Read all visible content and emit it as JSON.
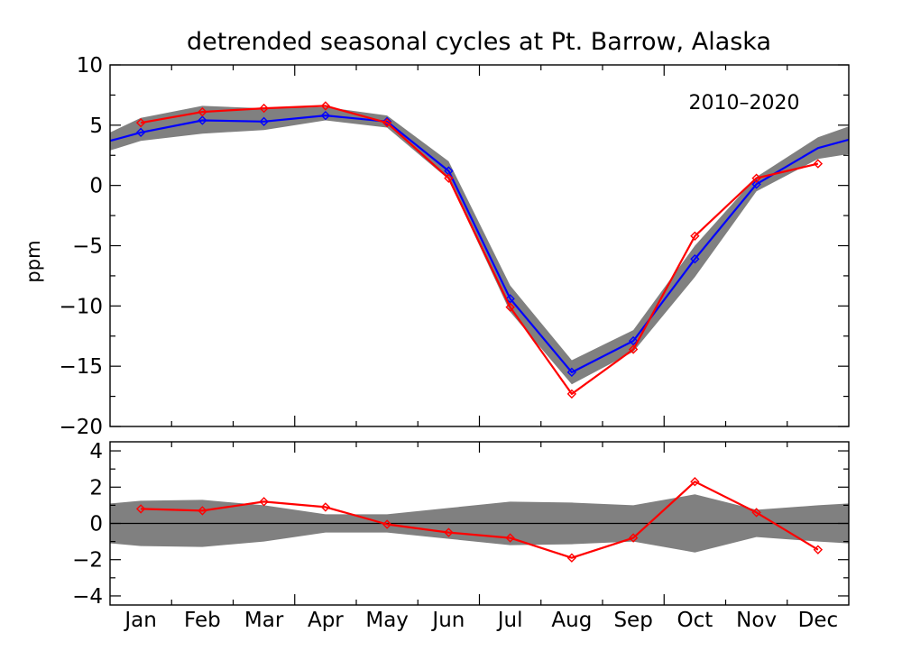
{
  "chart_data": [
    {
      "type": "line",
      "title": "detrended seasonal cycles at Pt. Barrow, Alaska",
      "ylabel": "ppm",
      "xlabel": "",
      "annotation": "2010–2020",
      "categories": [
        "Jan",
        "Feb",
        "Mar",
        "Apr",
        "May",
        "Jun",
        "Jul",
        "Aug",
        "Sep",
        "Oct",
        "Nov",
        "Dec"
      ],
      "ylim": [
        -20,
        10
      ],
      "yticks": [
        10,
        5,
        0,
        -5,
        -10,
        -15,
        -20
      ],
      "ytick_labels": [
        "10",
        "5",
        "0",
        "−5",
        "−10",
        "−15",
        "−20"
      ],
      "grid": false,
      "band": {
        "color": "#808080",
        "x": [
          -0.5,
          0,
          1,
          2,
          3,
          4,
          5,
          6,
          7,
          8,
          9,
          10,
          11,
          11.5
        ],
        "upper": [
          4.4,
          5.6,
          6.6,
          6.4,
          6.5,
          5.8,
          2.0,
          -8.3,
          -14.5,
          -12.0,
          -5.0,
          0.7,
          4.0,
          4.9
        ],
        "lower": [
          2.9,
          3.7,
          4.3,
          4.6,
          5.4,
          4.8,
          0.5,
          -10.5,
          -16.5,
          -13.8,
          -7.6,
          -0.5,
          2.2,
          2.6
        ]
      },
      "series": [
        {
          "color": "#0000ff",
          "marker": "diamond",
          "x": [
            -0.5,
            0,
            1,
            2,
            3,
            4,
            5,
            6,
            7,
            8,
            9,
            10,
            11,
            11.5
          ],
          "values": [
            3.7,
            4.4,
            5.4,
            5.3,
            5.8,
            5.3,
            1.2,
            -9.4,
            -15.5,
            -12.9,
            -6.1,
            0.1,
            3.1,
            3.8
          ],
          "marker_from": 1,
          "marker_to": 12
        },
        {
          "color": "#ff0000",
          "marker": "diamond",
          "x": [
            0,
            1,
            2,
            3,
            4,
            5,
            6,
            7,
            8,
            9,
            10,
            11
          ],
          "values": [
            5.2,
            6.1,
            6.4,
            6.6,
            5.2,
            0.6,
            -10.1,
            -17.3,
            -13.6,
            -4.2,
            0.6,
            1.8
          ]
        }
      ]
    },
    {
      "type": "line",
      "title": "",
      "ylabel": "",
      "xlabel": "",
      "categories": [
        "Jan",
        "Feb",
        "Mar",
        "Apr",
        "May",
        "Jun",
        "Jul",
        "Aug",
        "Sep",
        "Oct",
        "Nov",
        "Dec"
      ],
      "ylim": [
        -4.5,
        4.5
      ],
      "yticks": [
        4,
        2,
        0,
        -2,
        -4
      ],
      "ytick_labels": [
        "4",
        "2",
        "0",
        "−2",
        "−4"
      ],
      "grid": false,
      "zero_line": true,
      "band": {
        "color": "#808080",
        "x": [
          -0.5,
          0,
          1,
          2,
          3,
          4,
          5,
          6,
          7,
          8,
          9,
          10,
          11,
          11.5
        ],
        "upper": [
          1.1,
          1.25,
          1.3,
          1.0,
          0.5,
          0.5,
          0.85,
          1.2,
          1.15,
          1.0,
          1.6,
          0.75,
          1.0,
          1.1
        ],
        "lower": [
          -1.1,
          -1.25,
          -1.3,
          -1.0,
          -0.5,
          -0.5,
          -0.85,
          -1.2,
          -1.15,
          -1.0,
          -1.6,
          -0.75,
          -1.0,
          -1.1
        ]
      },
      "series": [
        {
          "color": "#ff0000",
          "marker": "diamond",
          "x": [
            0,
            1,
            2,
            3,
            4,
            5,
            6,
            7,
            8,
            9,
            10,
            11
          ],
          "values": [
            0.8,
            0.7,
            1.2,
            0.9,
            -0.05,
            -0.5,
            -0.8,
            -1.9,
            -0.8,
            2.3,
            0.6,
            -1.45
          ]
        }
      ]
    }
  ]
}
